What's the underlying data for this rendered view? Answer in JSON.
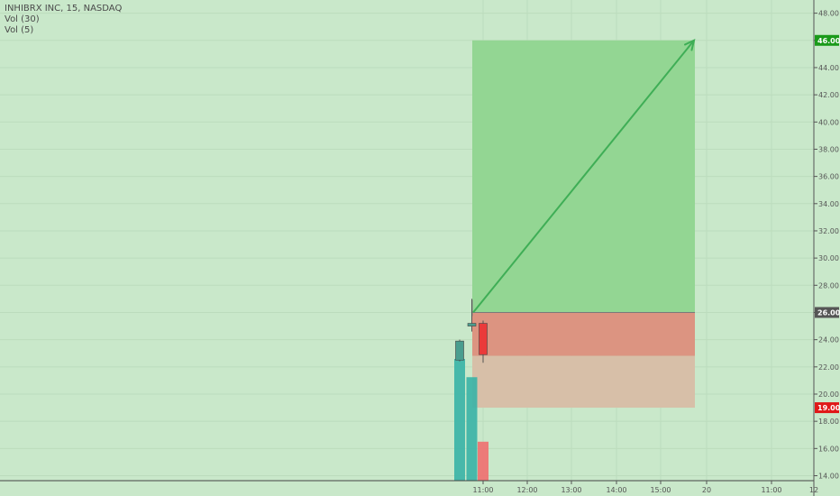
{
  "header": {
    "symbol_line": "INHIBRX INC, 15, NASDAQ",
    "vol30_label": "Vol (30)",
    "vol5_label": "Vol (5)"
  },
  "chart_data": {
    "type": "candlestick",
    "title": "INHIBRX INC, 15, NASDAQ",
    "y_axis_side": "right",
    "ylim": [
      13.5,
      49
    ],
    "y_ticks": [
      "14.00",
      "16.00",
      "18.00",
      "20.00",
      "22.00",
      "24.00",
      "26.00",
      "28.00",
      "30.00",
      "32.00",
      "34.00",
      "36.00",
      "38.00",
      "40.00",
      "42.00",
      "44.00",
      "46.00",
      "48.00"
    ],
    "x_ticks": [
      "11:00",
      "12:00",
      "13:00",
      "14:00",
      "15:00",
      "20",
      "11:00",
      "12"
    ],
    "price_labels": [
      {
        "value": 46.0,
        "text": "46.00",
        "color": "#1a9a1a"
      },
      {
        "value": 26.0,
        "text": "26.00",
        "color": "#555555"
      },
      {
        "value": 19.0,
        "text": "19.00",
        "color": "#e01818"
      }
    ],
    "candles": [
      {
        "time": "10:30",
        "open": 22.5,
        "high": 24.0,
        "low": 22.4,
        "close": 23.9,
        "direction": "up"
      },
      {
        "time": "10:45",
        "open": 25.0,
        "high": 27.0,
        "low": 24.6,
        "close": 25.2,
        "direction": "up"
      },
      {
        "time": "11:00",
        "open": 25.2,
        "high": 25.4,
        "low": 22.3,
        "close": 22.9,
        "direction": "down"
      }
    ],
    "volume_bars": [
      {
        "time": "10:30",
        "value": 1.0,
        "color": "#38b2a6"
      },
      {
        "time": "10:45",
        "value": 0.85,
        "color": "#38b2a6"
      },
      {
        "time": "11:00",
        "value": 0.32,
        "color": "#ef6f6f"
      }
    ],
    "position": {
      "type": "long",
      "entry": 26.0,
      "target": 46.0,
      "stop": 19.0,
      "current": 22.8
    },
    "colors": {
      "background": "#c9e8ca",
      "profit_zone": "#93d693",
      "loss_zone": "#dc9481",
      "loss_faded": "#d7bfa8",
      "arrow": "#3fae56",
      "up_candle": "#4a9e8f",
      "down_candle": "#ea3a3a"
    }
  }
}
